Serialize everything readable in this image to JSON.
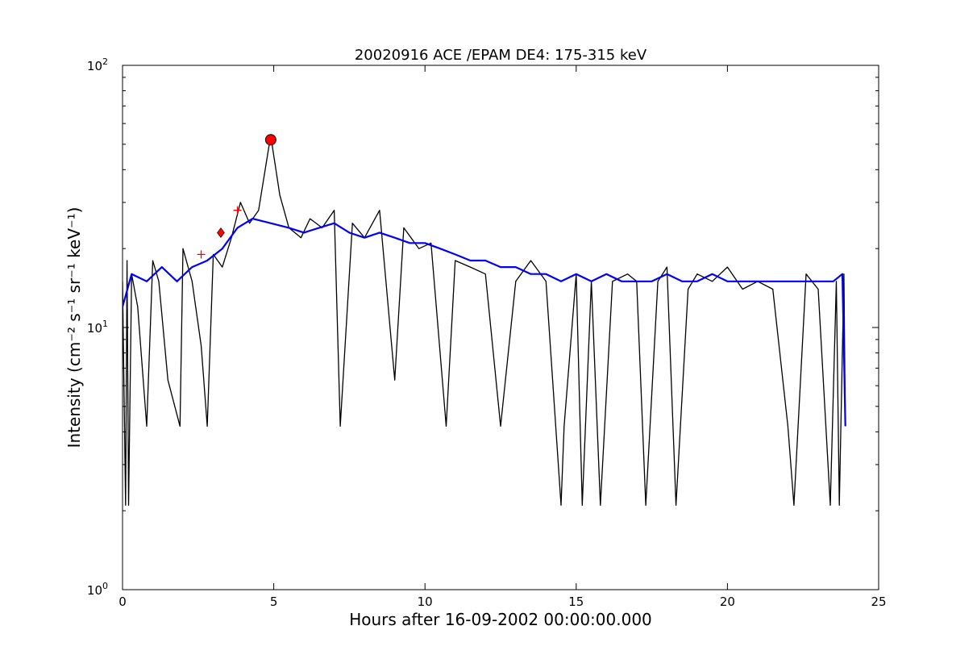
{
  "chart_data": {
    "type": "line",
    "title": "20020916 ACE /EPAM DE4: 175-315 keV",
    "xlabel": "Hours after 16-09-2002 00:00:00.000",
    "ylabel": "Intensity (cm⁻² s⁻¹ sr⁻¹ keV⁻¹)",
    "xlim": [
      0,
      25
    ],
    "ylim": [
      1,
      100
    ],
    "yscale": "log",
    "x_ticks": [
      0,
      5,
      10,
      15,
      20,
      25
    ],
    "x_tick_labels": [
      "0",
      "5",
      "10",
      "15",
      "20",
      "25"
    ],
    "y_ticks": [
      1,
      10,
      100
    ],
    "y_tick_labels": [
      {
        "base": "10",
        "exp": "0"
      },
      {
        "base": "10",
        "exp": "1"
      },
      {
        "base": "10",
        "exp": "2"
      }
    ],
    "grid": false,
    "series": [
      {
        "color": "#000000",
        "x": [
          0.0,
          0.1,
          0.15,
          0.2,
          0.3,
          0.5,
          0.8,
          1.0,
          1.2,
          1.5,
          1.9,
          2.0,
          2.3,
          2.6,
          2.8,
          3.0,
          3.3,
          3.6,
          3.9,
          4.2,
          4.5,
          4.9,
          5.2,
          5.5,
          5.9,
          6.2,
          6.6,
          7.0,
          7.2,
          7.6,
          8.0,
          8.5,
          9.0,
          9.3,
          9.8,
          10.2,
          10.7,
          11.0,
          11.5,
          12.0,
          12.5,
          13.0,
          13.5,
          14.0,
          14.5,
          14.6,
          15.0,
          15.2,
          15.5,
          15.8,
          16.2,
          16.7,
          17.0,
          17.3,
          17.7,
          18.0,
          18.3,
          18.7,
          19.0,
          19.5,
          20.0,
          20.5,
          21.0,
          21.5,
          22.0,
          22.2,
          22.6,
          23.0,
          23.4,
          23.6,
          23.7,
          23.85,
          23.9
        ],
        "y": [
          15,
          2.1,
          18,
          2.1,
          16,
          12,
          4.2,
          18,
          15,
          6.3,
          4.2,
          20,
          15,
          8.5,
          4.2,
          19,
          17,
          22,
          30,
          25,
          28,
          54,
          32,
          24,
          22,
          26,
          24,
          28,
          4.2,
          25,
          22,
          28,
          6.3,
          24,
          20,
          21,
          4.2,
          18,
          17,
          16,
          4.2,
          15,
          18,
          15,
          2.1,
          4.2,
          16,
          2.1,
          15,
          2.1,
          15,
          16,
          15,
          2.1,
          15,
          17,
          2.1,
          14,
          16,
          15,
          17,
          14,
          15,
          14,
          4.2,
          2.1,
          16,
          14,
          2.1,
          15,
          2.1,
          16,
          4.2
        ]
      },
      {
        "color": "#0000ff",
        "x": [
          0.0,
          0.3,
          0.8,
          1.3,
          1.8,
          2.3,
          2.8,
          3.3,
          3.8,
          4.3,
          4.9,
          5.5,
          6.0,
          6.5,
          7.0,
          7.5,
          8.0,
          8.5,
          9.0,
          9.5,
          10.0,
          10.5,
          11.0,
          11.5,
          12.0,
          12.5,
          13.0,
          13.5,
          14.0,
          14.5,
          15.0,
          15.5,
          16.0,
          16.5,
          17.0,
          17.5,
          18.0,
          18.5,
          19.0,
          19.5,
          20.0,
          20.5,
          21.0,
          21.5,
          22.0,
          22.5,
          23.0,
          23.5,
          23.8,
          23.9
        ],
        "y": [
          12,
          16,
          15,
          17,
          15,
          17,
          18,
          20,
          24,
          26,
          25,
          24,
          23,
          24,
          25,
          23,
          22,
          23,
          22,
          21,
          21,
          20,
          19,
          18,
          18,
          17,
          17,
          16,
          16,
          15,
          16,
          15,
          16,
          15,
          15,
          15,
          16,
          15,
          15,
          16,
          15,
          15,
          15,
          15,
          15,
          15,
          15,
          15,
          16,
          4.2
        ]
      }
    ],
    "markers": [
      {
        "x": 2.6,
        "y": 19,
        "shape": "plus",
        "color": "#ff0000"
      },
      {
        "x": 3.25,
        "y": 23,
        "shape": "diamond",
        "color": "#ff0000"
      },
      {
        "x": 3.8,
        "y": 28,
        "shape": "plus",
        "color": "#ff0000"
      },
      {
        "x": 4.9,
        "y": 52,
        "shape": "circle",
        "color": "#ff0000"
      }
    ]
  }
}
